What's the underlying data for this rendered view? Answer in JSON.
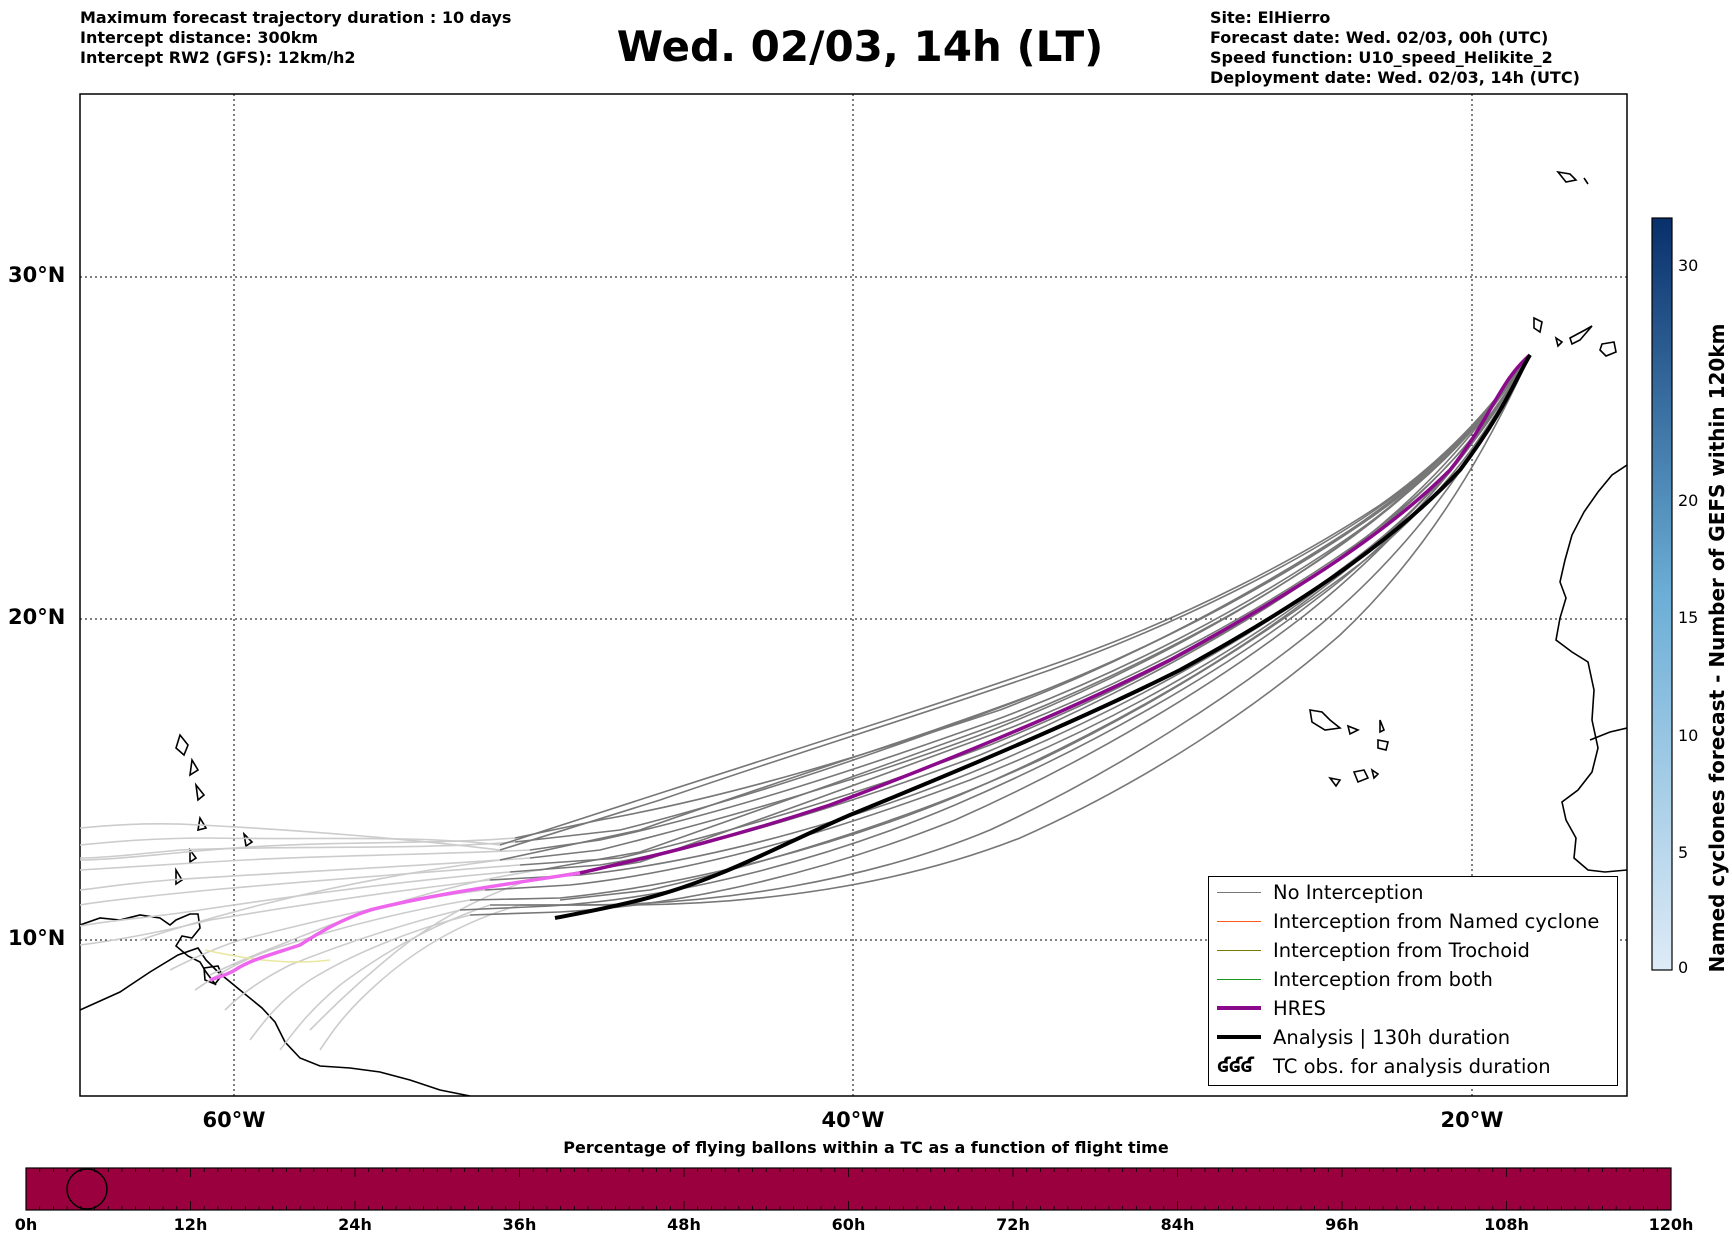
{
  "header": {
    "left_lines": [
      "Maximum forecast trajectory duration : 10 days",
      "Intercept distance: 300km",
      "Intercept RW2 (GFS):  12km/h2"
    ],
    "title": "Wed. 02/03, 14h (LT)",
    "right_lines": [
      "Site: ElHierro",
      "Forecast date: Wed. 02/03, 00h (UTC)",
      "Speed function: U10_speed_Helikite_2",
      "Deployment date: Wed. 02/03, 14h (UTC)"
    ]
  },
  "map": {
    "lat_labels": [
      "30°N",
      "20°N",
      "10°N"
    ],
    "lon_labels": [
      "60°W",
      "40°W",
      "20°W"
    ],
    "lon_range_deg": [
      -65,
      -15
    ],
    "lat_range_deg": [
      5.3,
      35.3
    ],
    "colors": {
      "no_interception_forecast": "#777777",
      "no_interception_extended": "#cccccc",
      "hres": "#8b0a8b",
      "hres_extended": "#ee66ee",
      "analysis": "#000000",
      "coastline": "#000000"
    }
  },
  "legend": {
    "items": [
      {
        "label": "No Interception",
        "color": "#777777",
        "kind": "line"
      },
      {
        "label": "Interception from Named cyclone",
        "color": "#ff5a1a",
        "kind": "line"
      },
      {
        "label": "Interception from Trochoid",
        "color": "#7a7a00",
        "kind": "line"
      },
      {
        "label": "Interception from both",
        "color": "#1a9a1a",
        "kind": "line"
      },
      {
        "label": "HRES",
        "color": "#8b0a8b",
        "kind": "thick"
      },
      {
        "label": "Analysis | 130h duration",
        "color": "#000000",
        "kind": "thick"
      },
      {
        "label": "TC obs. for analysis duration",
        "color": "#000000",
        "kind": "glyph",
        "glyph": "ʛʛʛ"
      }
    ]
  },
  "colorbar": {
    "title": "Named cyclones forecast - Number of GEFS within 120km",
    "ticks": [
      {
        "value": 0,
        "label": "0"
      },
      {
        "value": 5,
        "label": "5"
      },
      {
        "value": 10,
        "label": "10"
      },
      {
        "value": 15,
        "label": "15"
      },
      {
        "value": 20,
        "label": "20"
      },
      {
        "value": 30,
        "label": "30"
      }
    ],
    "range": [
      0,
      30
    ],
    "color_low": "#deebf7",
    "color_high": "#08306b"
  },
  "time_bar": {
    "title": "Percentage of flying ballons within a TC as a function of flight time",
    "fill_color": "#99003d",
    "percentage": 0,
    "ticks": [
      "0h",
      "12h",
      "24h",
      "36h",
      "48h",
      "60h",
      "72h",
      "84h",
      "96h",
      "108h",
      "120h"
    ]
  }
}
